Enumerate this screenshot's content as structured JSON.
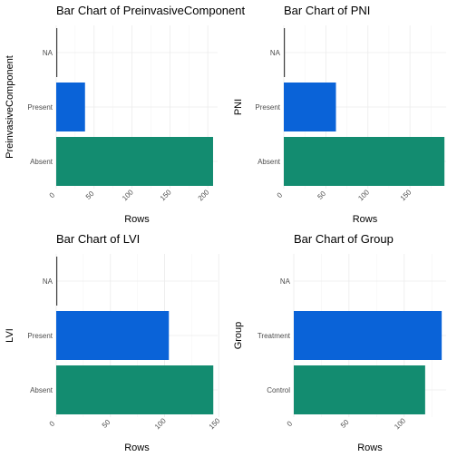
{
  "chart_data": [
    {
      "type": "bar",
      "orientation": "horizontal",
      "title": "Bar Chart of PreinvasiveComponent",
      "xlabel": "Rows",
      "ylabel": "PreinvasiveComponent",
      "categories": [
        "Absent",
        "Present",
        "NA"
      ],
      "values": [
        207,
        38,
        1
      ],
      "colors": [
        "#138c70",
        "#0a63d8",
        "#404040"
      ],
      "xlim": [
        0,
        213
      ],
      "xticks": [
        0,
        50,
        100,
        150,
        200
      ]
    },
    {
      "type": "bar",
      "orientation": "horizontal",
      "title": "Bar Chart of PNI",
      "xlabel": "Rows",
      "ylabel": "PNI",
      "categories": [
        "Absent",
        "Present",
        "NA"
      ],
      "values": [
        191,
        62,
        1
      ],
      "colors": [
        "#138c70",
        "#0a63d8",
        "#404040"
      ],
      "xlim": [
        0,
        193
      ],
      "xticks": [
        0,
        50,
        100,
        150
      ]
    },
    {
      "type": "bar",
      "orientation": "horizontal",
      "title": "Bar Chart of LVI",
      "xlabel": "Rows",
      "ylabel": "LVI",
      "categories": [
        "Absent",
        "Present",
        "NA"
      ],
      "values": [
        145,
        104,
        1
      ],
      "colors": [
        "#138c70",
        "#0a63d8",
        "#404040"
      ],
      "xlim": [
        0,
        149
      ],
      "xticks": [
        0,
        50,
        100,
        150
      ]
    },
    {
      "type": "bar",
      "orientation": "horizontal",
      "title": "Bar Chart of Group",
      "xlabel": "Rows",
      "ylabel": "Group",
      "categories": [
        "Control",
        "Treatment",
        "NA"
      ],
      "values": [
        119,
        134,
        0
      ],
      "colors": [
        "#138c70",
        "#0a63d8",
        "#404040"
      ],
      "xlim": [
        0,
        138
      ],
      "xticks": [
        0,
        50,
        100
      ]
    }
  ]
}
